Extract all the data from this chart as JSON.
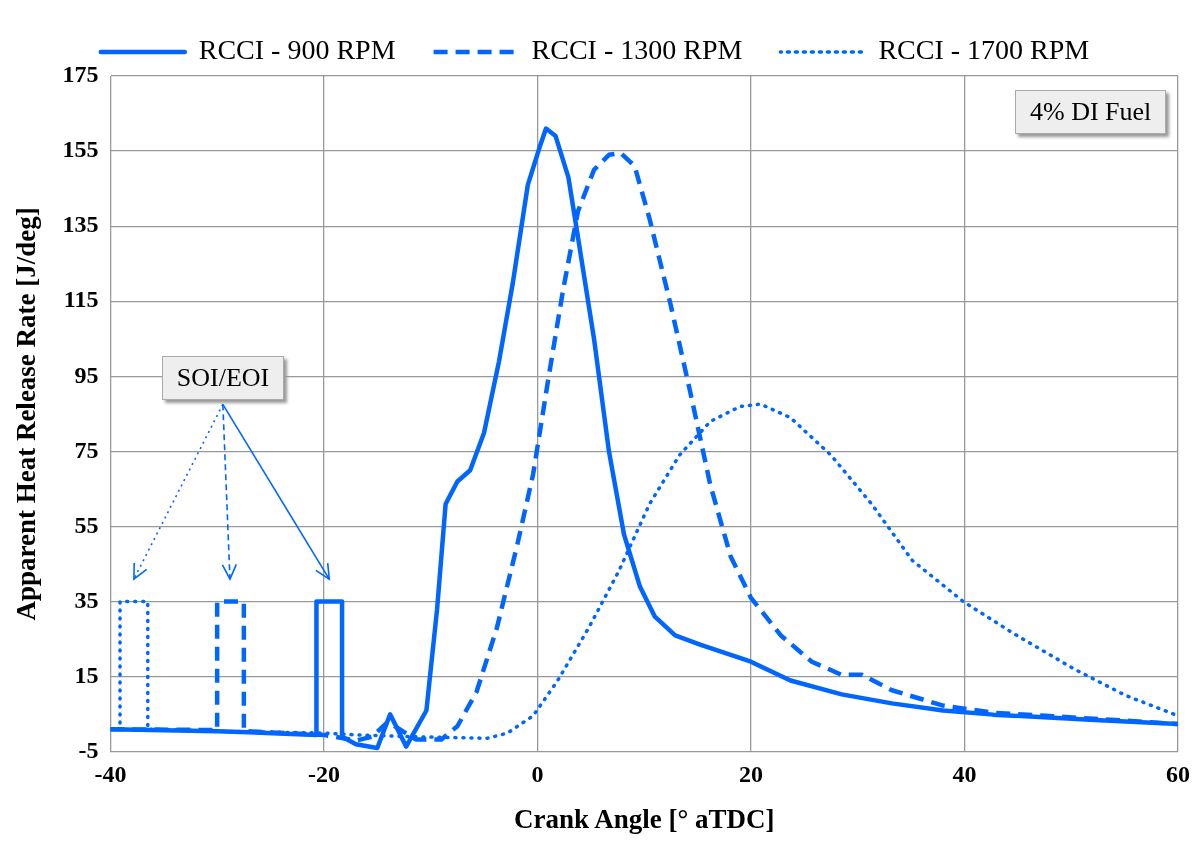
{
  "chart_data": {
    "type": "line",
    "xlabel": "Crank Angle [° aTDC]",
    "ylabel": "Apparent Heat Release Rate [J/deg]",
    "xlim": [
      -40,
      60
    ],
    "xticks": [
      -40,
      -20,
      0,
      20,
      40,
      60
    ],
    "ylim": [
      -5,
      175
    ],
    "yticks": [
      -5,
      15,
      35,
      55,
      75,
      95,
      115,
      135,
      155,
      175
    ],
    "grid": true,
    "legend": "top",
    "marker": "none",
    "annotations": [
      "SOI/EOI",
      "4% DI Fuel"
    ],
    "series": [
      {
        "name": "RCCI - 900 RPM",
        "color": "#0066ff",
        "line_style": "solid",
        "x": [
          -40,
          -30,
          -20.7,
          -20.7,
          -18.3,
          -18.3,
          -17,
          -15,
          -13.8,
          -12.3,
          -10.4,
          -9.4,
          -8.6,
          -7.5,
          -6.3,
          -5,
          -3.6,
          -2.3,
          -0.9,
          0.2,
          0.8,
          1.7,
          2.9,
          3.8,
          5.3,
          6.7,
          8.1,
          9.6,
          11,
          12.9,
          15.3,
          20,
          23.7,
          28.5,
          33.2,
          38,
          42.7,
          52.2,
          60
        ],
        "values": [
          1,
          0.5,
          -0.5,
          35,
          35,
          -1,
          -3,
          -4,
          5,
          -3.6,
          6,
          33,
          61,
          67,
          70,
          80,
          99,
          120,
          146,
          156,
          161,
          159,
          148,
          132,
          105,
          75,
          53,
          39,
          31,
          26,
          23.5,
          19,
          14,
          10.3,
          7.9,
          6,
          4.9,
          3.5,
          2.4
        ]
      },
      {
        "name": "RCCI - 1300 RPM",
        "color": "#0066ff",
        "line_style": "dashed",
        "x": [
          -40,
          -30,
          -30,
          -27.5,
          -27.5,
          -20,
          -17,
          -15.5,
          -14,
          -11.4,
          -9,
          -7.5,
          -5.7,
          -3.8,
          -1.9,
          -0.4,
          1,
          2.4,
          3.8,
          5.3,
          6.7,
          7.8,
          9.1,
          10.5,
          12.4,
          14.3,
          16.2,
          18.1,
          20,
          22.8,
          25.7,
          28.5,
          30.4,
          33.2,
          38,
          42.7,
          52.2,
          60
        ],
        "values": [
          1,
          0.8,
          35,
          35,
          0.5,
          -0.5,
          -2,
          -1,
          3,
          -1.7,
          -1.7,
          1.8,
          11,
          28,
          50,
          69,
          94,
          118,
          139,
          150,
          154,
          154.5,
          151,
          137,
          115,
          91,
          66,
          47,
          36,
          26,
          19,
          15.5,
          15.5,
          11.4,
          7.3,
          5.4,
          3.8,
          2.4
        ]
      },
      {
        "name": "RCCI - 1700 RPM",
        "color": "#0066ff",
        "line_style": "dotted",
        "x": [
          -40,
          -39.1,
          -39.1,
          -36.5,
          -36.5,
          -30,
          -20,
          -17,
          -11.4,
          -4.7,
          -2.8,
          -0.4,
          1.9,
          4.8,
          7.6,
          10.5,
          13.3,
          16.2,
          19,
          20.9,
          23.7,
          27.5,
          31.3,
          35.1,
          39.9,
          44.6,
          50.3,
          55.1,
          60
        ],
        "values": [
          1,
          1,
          35,
          35,
          1,
          0.5,
          0,
          -0.5,
          -1,
          -1.4,
          0,
          4.6,
          14,
          28,
          43,
          61,
          74,
          83,
          87,
          87.6,
          84,
          74,
          61,
          46,
          35,
          26.5,
          17,
          10,
          4.6
        ]
      }
    ]
  }
}
